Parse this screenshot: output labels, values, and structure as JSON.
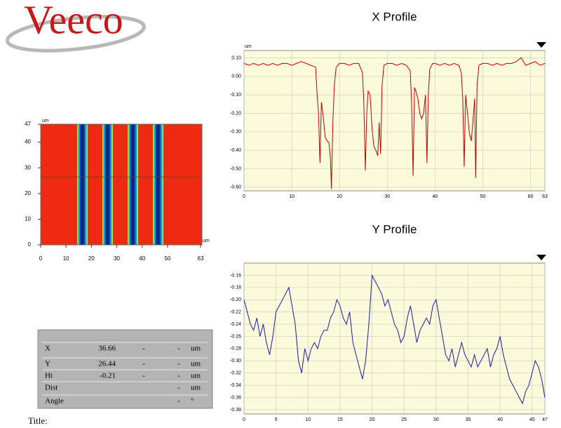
{
  "header": {
    "logo": "Veeco"
  },
  "image": {
    "unit_x": "um",
    "unit_y": "um",
    "xlim": [
      0,
      63
    ],
    "ylim": [
      0,
      47
    ],
    "xticks": [
      0,
      10,
      20,
      30,
      40,
      50,
      63
    ],
    "yticks": [
      0,
      10,
      20,
      30,
      40,
      47
    ]
  },
  "chart_data": [
    {
      "type": "line",
      "title": "X Profile",
      "unit": "um",
      "x": [
        0,
        1,
        2,
        3,
        4,
        5,
        6,
        7,
        8,
        9,
        10,
        11,
        12,
        13,
        14,
        15,
        15.3,
        15.6,
        15.9,
        16.2,
        16.6,
        17,
        17.4,
        17.8,
        18.1,
        18.3,
        18.6,
        18.9,
        19.3,
        20,
        21,
        22,
        23,
        24,
        24.8,
        25.1,
        25.4,
        25.7,
        26,
        26.4,
        26.8,
        27.2,
        27.6,
        28,
        28.3,
        28.6,
        28.9,
        29.3,
        30,
        31,
        32,
        33,
        34,
        34.8,
        35.1,
        35.4,
        35.7,
        36,
        36.4,
        36.8,
        37.2,
        37.6,
        38,
        38.3,
        38.6,
        38.9,
        39.5,
        40,
        41,
        42,
        43,
        44,
        45,
        45.5,
        45.8,
        46.1,
        46.4,
        46.8,
        47.2,
        47.6,
        48,
        48.3,
        48.5,
        48.8,
        49.2,
        50,
        51,
        52,
        53,
        54,
        55,
        56,
        57,
        58,
        59,
        60,
        61,
        62,
        63
      ],
      "series": [
        {
          "color": "#c00000",
          "values": [
            0.07,
            0.06,
            0.07,
            0.06,
            0.07,
            0.06,
            0.07,
            0.06,
            0.07,
            0.07,
            0.06,
            0.07,
            0.08,
            0.07,
            0.06,
            0.05,
            -0.1,
            -0.2,
            -0.47,
            -0.14,
            -0.22,
            -0.33,
            -0.35,
            -0.36,
            -0.45,
            -0.61,
            -0.25,
            -0.05,
            0.05,
            0.07,
            0.07,
            0.06,
            0.07,
            0.07,
            0.02,
            -0.15,
            -0.51,
            -0.2,
            -0.08,
            -0.1,
            -0.28,
            -0.38,
            -0.4,
            -0.43,
            -0.25,
            -0.42,
            -0.05,
            0.06,
            0.07,
            0.07,
            0.06,
            0.07,
            0.06,
            0.03,
            -0.15,
            -0.54,
            -0.06,
            -0.08,
            -0.12,
            -0.2,
            -0.23,
            -0.2,
            -0.1,
            -0.47,
            -0.1,
            0.04,
            0.07,
            0.07,
            0.06,
            0.07,
            0.06,
            0.07,
            0.06,
            0.02,
            -0.12,
            -0.49,
            -0.1,
            -0.2,
            -0.31,
            -0.35,
            -0.22,
            -0.12,
            -0.55,
            -0.05,
            0.06,
            0.07,
            0.07,
            0.06,
            0.07,
            0.06,
            0.07,
            0.07,
            0.08,
            0.1,
            0.06,
            0.07,
            0.08,
            0.06,
            0.07
          ]
        }
      ],
      "xlim": [
        0,
        63
      ],
      "ylim": [
        -0.62,
        0.14
      ],
      "xticks": [
        0,
        10,
        20,
        30,
        40,
        50,
        60,
        63
      ],
      "yticks": [
        {
          "value": 0.1,
          "label": "0.10"
        },
        {
          "value": 0,
          "label": "0.00"
        },
        {
          "value": -0.1,
          "label": "-0.10"
        },
        {
          "value": -0.2,
          "label": "-0.20"
        },
        {
          "value": -0.3,
          "label": "-0.30"
        },
        {
          "value": -0.4,
          "label": "-0.40"
        },
        {
          "value": -0.5,
          "label": "-0.50"
        },
        {
          "value": -0.6,
          "label": "-0.60"
        }
      ],
      "grid": true
    },
    {
      "type": "line",
      "title": "Y Profile",
      "x": [
        0,
        0.5,
        1,
        1.5,
        2,
        2.5,
        3,
        3.5,
        4,
        4.5,
        5,
        5.5,
        6,
        6.5,
        7,
        7.5,
        8,
        8.5,
        9,
        9.5,
        10,
        10.5,
        11,
        11.5,
        12,
        12.5,
        13,
        13.5,
        14,
        14.5,
        15,
        15.5,
        16,
        16.5,
        17,
        17.5,
        18,
        18.5,
        19,
        19.5,
        20,
        20.5,
        21,
        21.5,
        22,
        22.5,
        23,
        23.5,
        24,
        24.5,
        25,
        25.5,
        26,
        26.5,
        27,
        27.5,
        28,
        28.5,
        29,
        29.5,
        30,
        30.5,
        31,
        31.5,
        32,
        32.5,
        33,
        33.5,
        34,
        34.5,
        35,
        35.5,
        36,
        36.5,
        37,
        37.5,
        38,
        38.5,
        39,
        39.5,
        40,
        40.5,
        41,
        41.5,
        42,
        42.5,
        43,
        43.5,
        44,
        44.5,
        45,
        45.5,
        46,
        46.5,
        47
      ],
      "series": [
        {
          "color": "#1a1ab0",
          "values": [
            -0.2,
            -0.22,
            -0.24,
            -0.25,
            -0.23,
            -0.26,
            -0.24,
            -0.27,
            -0.29,
            -0.26,
            -0.22,
            -0.21,
            -0.2,
            -0.19,
            -0.18,
            -0.21,
            -0.24,
            -0.3,
            -0.32,
            -0.28,
            -0.3,
            -0.28,
            -0.27,
            -0.28,
            -0.26,
            -0.25,
            -0.25,
            -0.23,
            -0.22,
            -0.2,
            -0.21,
            -0.23,
            -0.24,
            -0.22,
            -0.27,
            -0.29,
            -0.31,
            -0.33,
            -0.3,
            -0.24,
            -0.16,
            -0.17,
            -0.18,
            -0.19,
            -0.21,
            -0.2,
            -0.22,
            -0.24,
            -0.25,
            -0.27,
            -0.26,
            -0.23,
            -0.21,
            -0.24,
            -0.27,
            -0.25,
            -0.24,
            -0.23,
            -0.24,
            -0.21,
            -0.2,
            -0.23,
            -0.26,
            -0.29,
            -0.3,
            -0.28,
            -0.31,
            -0.29,
            -0.27,
            -0.29,
            -0.3,
            -0.31,
            -0.29,
            -0.31,
            -0.3,
            -0.29,
            -0.28,
            -0.31,
            -0.29,
            -0.28,
            -0.26,
            -0.29,
            -0.31,
            -0.33,
            -0.34,
            -0.35,
            -0.36,
            -0.37,
            -0.35,
            -0.34,
            -0.32,
            -0.3,
            -0.31,
            -0.33,
            -0.36
          ]
        }
      ],
      "xlim": [
        0,
        47
      ],
      "ylim": [
        -0.387,
        -0.14
      ],
      "xticks": [
        0,
        5,
        10,
        15,
        20,
        25,
        30,
        35,
        40,
        45,
        47
      ],
      "yticks": [
        -0.16,
        -0.18,
        {
          "value": -0.2,
          "label": "-0.20"
        },
        -0.22,
        -0.24,
        -0.26,
        -0.28,
        {
          "value": -0.3,
          "label": "-0.30"
        },
        -0.32,
        -0.34,
        -0.36,
        -0.38
      ],
      "grid": true
    }
  ],
  "table": {
    "rows": [
      {
        "label": "X",
        "value": 36.66,
        "col3": "-",
        "col4": "-",
        "unit": "um"
      },
      {
        "label": "Y",
        "value": 26.44,
        "col3": "-",
        "col4": "-",
        "unit": "um"
      },
      {
        "label": "Ht",
        "value": -0.21,
        "col3": "-",
        "col4": "-",
        "unit": "um"
      },
      {
        "label": "Dist",
        "col4": "-",
        "unit": "um"
      },
      {
        "label": "Angle",
        "col4": "-",
        "unit": "°"
      }
    ]
  },
  "footer": {
    "title_label": "Title:"
  }
}
